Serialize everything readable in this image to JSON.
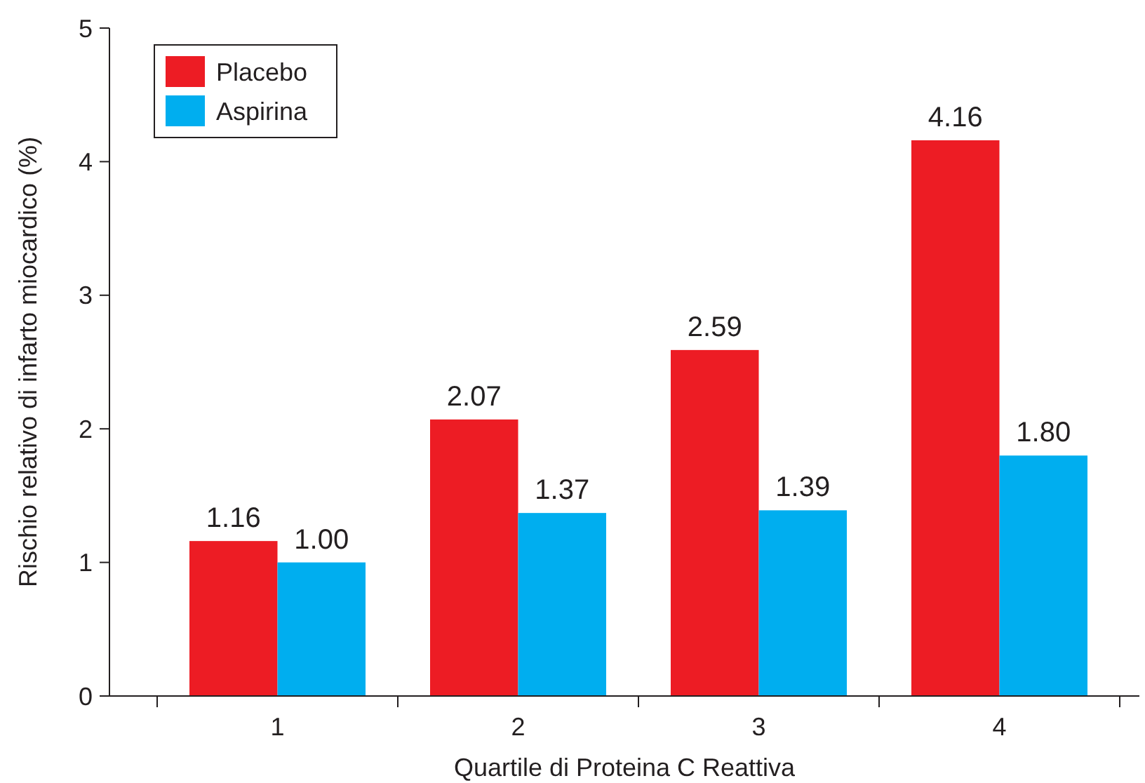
{
  "chart_data": {
    "type": "bar",
    "xlabel": "Quartile di Proteina C Reattiva",
    "ylabel": "Rischio relativo di infarto miocardico (%)",
    "categories": [
      "1",
      "2",
      "3",
      "4"
    ],
    "series": [
      {
        "name": "Placebo",
        "color": "#ed1c24",
        "values": [
          1.16,
          2.07,
          2.59,
          4.16
        ],
        "value_labels": [
          "1.16",
          "2.07",
          "2.59",
          "4.16"
        ]
      },
      {
        "name": "Aspirina",
        "color": "#00aeef",
        "values": [
          1.0,
          1.37,
          1.39,
          1.8
        ],
        "value_labels": [
          "1.00",
          "1.37",
          "1.39",
          "1.80"
        ]
      }
    ],
    "ylim": [
      0,
      5
    ],
    "yticks": [
      0,
      1,
      2,
      3,
      4,
      5
    ],
    "grid": false,
    "legend": "top left"
  }
}
